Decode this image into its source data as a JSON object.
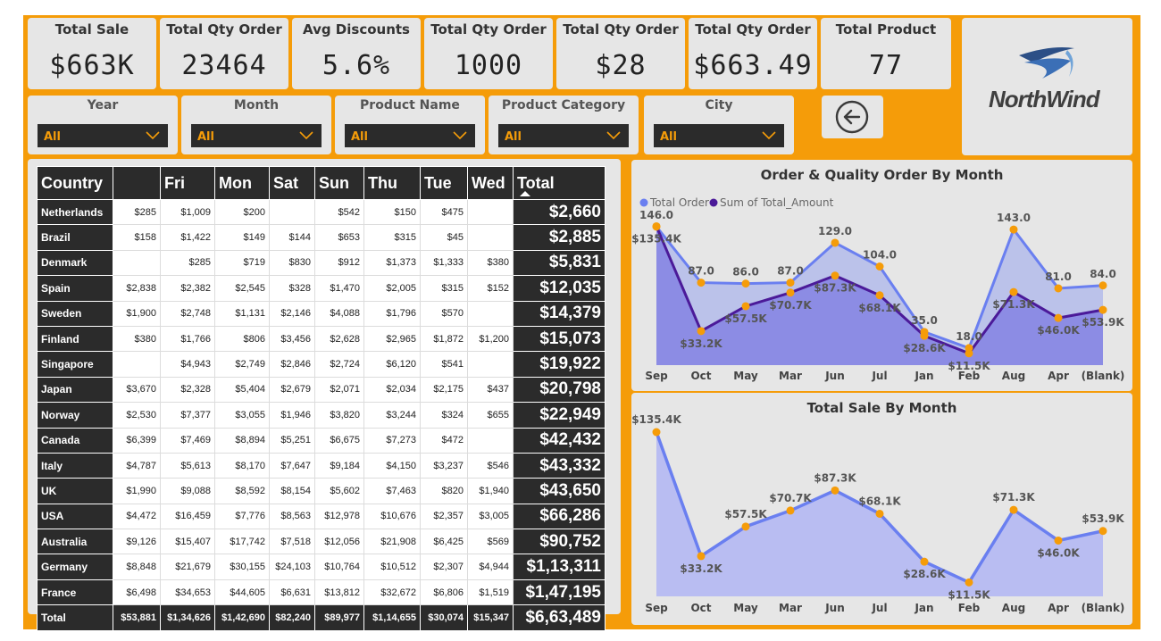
{
  "kpis": [
    {
      "title": "Total Sale",
      "value": "$663K"
    },
    {
      "title": "Total Qty Order",
      "value": "23464"
    },
    {
      "title": "Avg Discounts",
      "value": "5.6%"
    },
    {
      "title": "Total Qty Order",
      "value": "1000"
    },
    {
      "title": "Total Qty Order",
      "value": "$28"
    },
    {
      "title": "Total Qty Order",
      "value": "$663.49"
    },
    {
      "title": "Total Product",
      "value": "77"
    }
  ],
  "slicers": [
    {
      "title": "Year",
      "value": "All"
    },
    {
      "title": "Month",
      "value": "All"
    },
    {
      "title": "Product Name",
      "value": "All"
    },
    {
      "title": "Product Category",
      "value": "All"
    },
    {
      "title": "City",
      "value": "All"
    }
  ],
  "logo": {
    "text": "NorthWind"
  },
  "matrix": {
    "headers": [
      "Country",
      "",
      "Fri",
      "Mon",
      "Sat",
      "Sun",
      "Thu",
      "Tue",
      "Wed",
      "Total"
    ],
    "rows": [
      {
        "country": "Netherlands",
        "cells": [
          "$285",
          "$1,009",
          "$200",
          "",
          "$542",
          "$150",
          "$475",
          ""
        ],
        "total": "$2,660"
      },
      {
        "country": "Brazil",
        "cells": [
          "$158",
          "$1,422",
          "$149",
          "$144",
          "$653",
          "$315",
          "$45",
          ""
        ],
        "total": "$2,885"
      },
      {
        "country": "Denmark",
        "cells": [
          "",
          "$285",
          "$719",
          "$830",
          "$912",
          "$1,373",
          "$1,333",
          "$380"
        ],
        "total": "$5,831"
      },
      {
        "country": "Spain",
        "cells": [
          "$2,838",
          "$2,382",
          "$2,545",
          "$328",
          "$1,470",
          "$2,005",
          "$315",
          "$152"
        ],
        "total": "$12,035"
      },
      {
        "country": "Sweden",
        "cells": [
          "$1,900",
          "$2,748",
          "$1,131",
          "$2,146",
          "$4,088",
          "$1,796",
          "$570",
          ""
        ],
        "total": "$14,379"
      },
      {
        "country": "Finland",
        "cells": [
          "$380",
          "$1,766",
          "$806",
          "$3,456",
          "$2,628",
          "$2,965",
          "$1,872",
          "$1,200"
        ],
        "total": "$15,073"
      },
      {
        "country": "Singapore",
        "cells": [
          "",
          "$4,943",
          "$2,749",
          "$2,846",
          "$2,724",
          "$6,120",
          "$541",
          ""
        ],
        "total": "$19,922"
      },
      {
        "country": "Japan",
        "cells": [
          "$3,670",
          "$2,328",
          "$5,404",
          "$2,679",
          "$2,071",
          "$2,034",
          "$2,175",
          "$437"
        ],
        "total": "$20,798"
      },
      {
        "country": "Norway",
        "cells": [
          "$2,530",
          "$7,377",
          "$3,055",
          "$1,946",
          "$3,820",
          "$3,244",
          "$324",
          "$655"
        ],
        "total": "$22,949"
      },
      {
        "country": "Canada",
        "cells": [
          "$6,399",
          "$7,469",
          "$8,894",
          "$5,251",
          "$6,675",
          "$7,273",
          "$472",
          ""
        ],
        "total": "$42,432"
      },
      {
        "country": "Italy",
        "cells": [
          "$4,787",
          "$5,613",
          "$8,170",
          "$7,647",
          "$9,184",
          "$4,150",
          "$3,237",
          "$546"
        ],
        "total": "$43,332"
      },
      {
        "country": "UK",
        "cells": [
          "$1,990",
          "$9,088",
          "$8,592",
          "$8,154",
          "$5,602",
          "$7,463",
          "$820",
          "$1,940"
        ],
        "total": "$43,650"
      },
      {
        "country": "USA",
        "cells": [
          "$4,472",
          "$16,459",
          "$7,776",
          "$8,563",
          "$12,978",
          "$10,676",
          "$2,357",
          "$3,005"
        ],
        "total": "$66,286"
      },
      {
        "country": "Australia",
        "cells": [
          "$9,126",
          "$15,407",
          "$17,742",
          "$7,518",
          "$12,056",
          "$21,908",
          "$6,425",
          "$569"
        ],
        "total": "$90,752"
      },
      {
        "country": "Germany",
        "cells": [
          "$8,848",
          "$21,679",
          "$30,155",
          "$24,103",
          "$10,764",
          "$10,512",
          "$2,307",
          "$4,944"
        ],
        "total": "$1,13,311"
      },
      {
        "country": "France",
        "cells": [
          "$6,498",
          "$34,653",
          "$44,605",
          "$6,631",
          "$13,812",
          "$32,672",
          "$6,806",
          "$1,519"
        ],
        "total": "$1,47,195"
      }
    ],
    "total_row": {
      "label": "Total",
      "cells": [
        "$53,881",
        "$1,34,626",
        "$1,42,690",
        "$82,240",
        "$89,977",
        "$1,14,655",
        "$30,074",
        "$15,347"
      ],
      "total": "$6,63,489"
    }
  },
  "colors": {
    "accent": "#f59c09",
    "dark": "#2b2b2b",
    "series_order": "#6a7ff0",
    "series_amount": "#4b1a99",
    "area_fill": "#9b8fdc",
    "area_fill2": "#b9bdf2",
    "marker": "#f59c09"
  },
  "chart_data": [
    {
      "type": "line",
      "title": "Order & Quality Order By Month",
      "legend_position": "top-left",
      "x": [
        "Sep",
        "Oct",
        "May",
        "Mar",
        "Jun",
        "Jul",
        "Jan",
        "Feb",
        "Aug",
        "Apr",
        "(Blank)"
      ],
      "series": [
        {
          "name": "Total Order",
          "values": [
            146,
            87,
            86,
            87,
            129,
            104,
            35,
            18,
            143,
            81,
            84
          ],
          "labels": [
            "146.0",
            "87.0",
            "86.0",
            "87.0",
            "129.0",
            "104.0",
            "35.0",
            "18.0",
            "143.0",
            "81.0",
            "84.0"
          ]
        },
        {
          "name": "Sum of Total_Amount",
          "values": [
            135400,
            33200,
            57500,
            70700,
            87300,
            68100,
            28600,
            11500,
            71300,
            46000,
            53900
          ],
          "labels": [
            "$135.4K",
            "$33.2K",
            "$57.5K",
            "$70.7K",
            "$87.3K",
            "$68.1K",
            "$28.6K",
            "$11.5K",
            "$71.3K",
            "$46.0K",
            "$53.9K"
          ]
        }
      ]
    },
    {
      "type": "area",
      "title": "Total Sale By Month",
      "x": [
        "Sep",
        "Oct",
        "May",
        "Mar",
        "Jun",
        "Jul",
        "Jan",
        "Feb",
        "Aug",
        "Apr",
        "(Blank)"
      ],
      "series": [
        {
          "values": [
            135400,
            33200,
            57500,
            70700,
            87300,
            68100,
            28600,
            11500,
            71300,
            46000,
            53900
          ],
          "labels": [
            "$135.4K",
            "$33.2K",
            "$57.5K",
            "$70.7K",
            "$87.3K",
            "$68.1K",
            "$28.6K",
            "$11.5K",
            "$71.3K",
            "$46.0K",
            "$53.9K"
          ]
        }
      ]
    }
  ]
}
